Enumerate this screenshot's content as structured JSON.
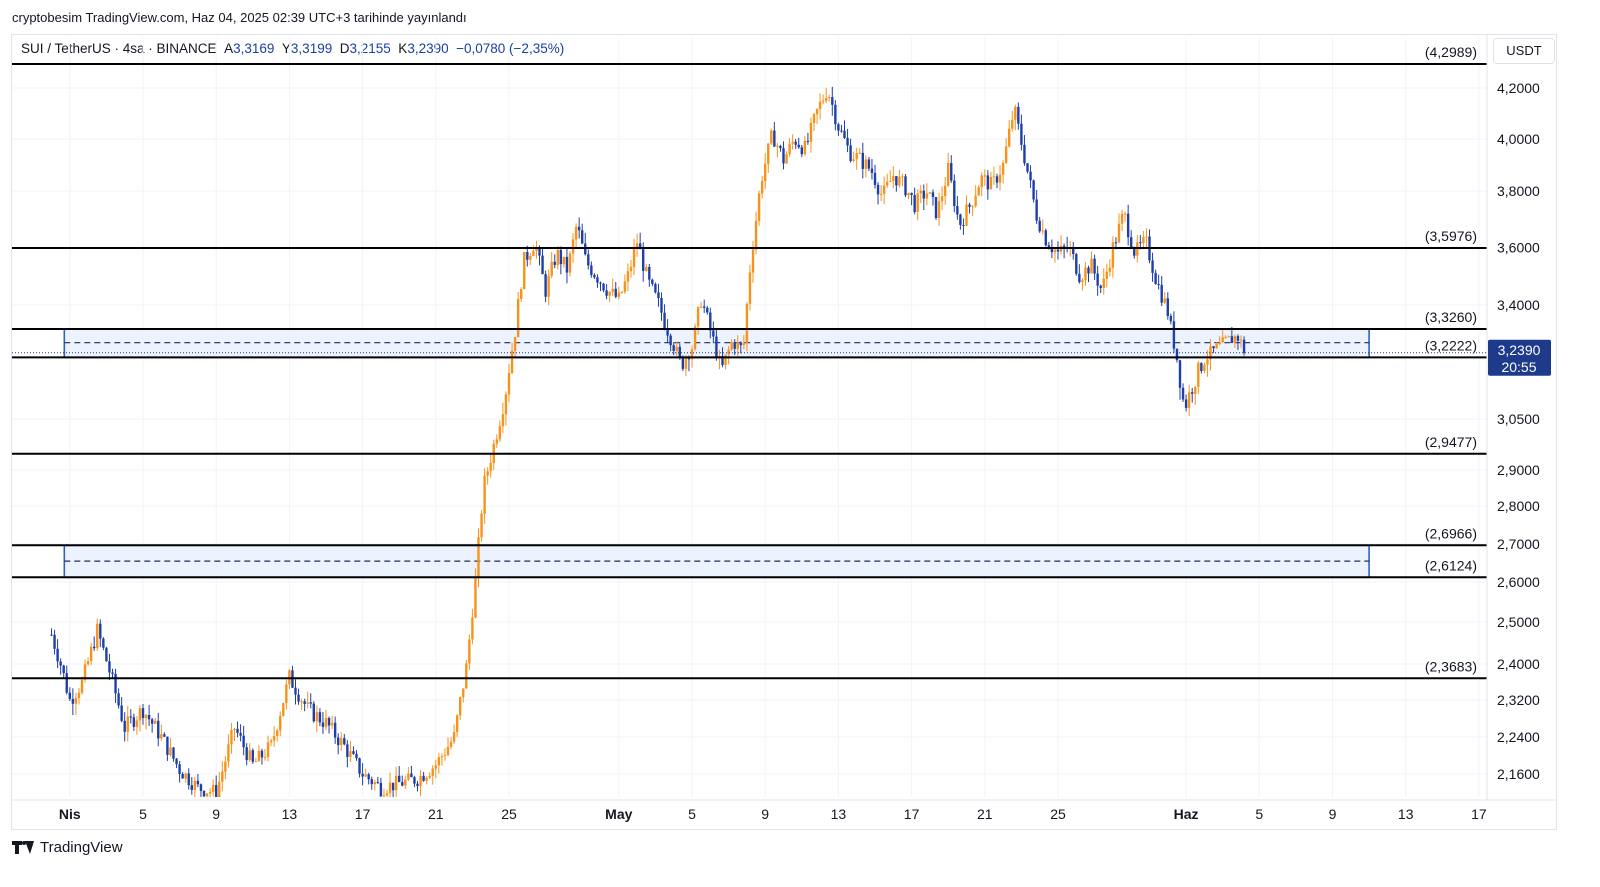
{
  "publisher_line": "cryptobesim TradingView.com, Haz 04, 2025 02:39 UTC+3 tarihinde yayınlandı",
  "legend": {
    "symbol": "SUI / TetherUS · 4sa · BINANCE",
    "open_label": "A",
    "open": "3,3169",
    "high_label": "Y",
    "high": "3,3199",
    "low_label": "D",
    "low": "3,2155",
    "close_label": "K",
    "close": "3,2390",
    "change": "−0,0780 (−2,35%)"
  },
  "currency": "USDT",
  "price_badge": {
    "price": "3,2390",
    "countdown": "20:55",
    "color": "#1e3a8a"
  },
  "brand": "TradingView",
  "colors": {
    "up": "#f7931a",
    "down": "#1e3fa8",
    "zone_fill": "#e9efff",
    "zone_border": "#2f5fc4",
    "line": "#000000"
  },
  "chart_data": {
    "type": "candlestick",
    "symbol": "SUI/USDT",
    "timeframe": "4h",
    "y_axis_ticks": [
      "2,1600",
      "2,2400",
      "2,3200",
      "2,4000",
      "2,5000",
      "2,6000",
      "2,7000",
      "2,8000",
      "2,9000",
      "3,0500",
      "3,4000",
      "3,6000",
      "3,8000",
      "4,0000",
      "4,2000"
    ],
    "y_ticks_values": [
      2.16,
      2.24,
      2.32,
      2.4,
      2.5,
      2.6,
      2.7,
      2.8,
      2.9,
      3.05,
      3.4,
      3.6,
      3.8,
      4.0,
      4.2
    ],
    "x_axis_ticks": [
      {
        "label": "Nis",
        "bold": true,
        "day": 1
      },
      {
        "label": "5",
        "day": 5
      },
      {
        "label": "9",
        "day": 9
      },
      {
        "label": "13",
        "day": 13
      },
      {
        "label": "17",
        "day": 17
      },
      {
        "label": "21",
        "day": 21
      },
      {
        "label": "25",
        "day": 25
      },
      {
        "label": "May",
        "bold": true,
        "day": 31
      },
      {
        "label": "5",
        "day": 35
      },
      {
        "label": "9",
        "day": 39
      },
      {
        "label": "13",
        "day": 43
      },
      {
        "label": "17",
        "day": 47
      },
      {
        "label": "21",
        "day": 51
      },
      {
        "label": "25",
        "day": 55
      },
      {
        "label": "Haz",
        "bold": true,
        "day": 62
      },
      {
        "label": "5",
        "day": 66
      },
      {
        "label": "9",
        "day": 70
      },
      {
        "label": "13",
        "day": 74
      },
      {
        "label": "17",
        "day": 78
      }
    ],
    "horizontal_levels": [
      {
        "value": 4.2989,
        "label": "(4,2989)"
      },
      {
        "value": 3.5976,
        "label": "(3,5976)"
      },
      {
        "value": 3.326,
        "label": "(3,3260)"
      },
      {
        "value": 3.2222,
        "label": "(3,2222)"
      },
      {
        "value": 2.9477,
        "label": "(2,9477)"
      },
      {
        "value": 2.6966,
        "label": "(2,6966)"
      },
      {
        "value": 2.6124,
        "label": "(2,6124)"
      },
      {
        "value": 2.3683,
        "label": "(2,3683)"
      }
    ],
    "zones": [
      {
        "top": 3.326,
        "bottom": 3.2222,
        "mid": 3.276,
        "start_day": 0.7,
        "end_day": 72
      },
      {
        "top": 2.6966,
        "bottom": 2.6124,
        "mid": 2.655,
        "start_day": 0.7,
        "end_day": 72
      }
    ],
    "last_price": 3.239,
    "price_path": [
      [
        0,
        2.47
      ],
      [
        0.5,
        2.4
      ],
      [
        1,
        2.32
      ],
      [
        1.7,
        2.36
      ],
      [
        2.5,
        2.48
      ],
      [
        3.2,
        2.38
      ],
      [
        4,
        2.26
      ],
      [
        5,
        2.3
      ],
      [
        6,
        2.24
      ],
      [
        7,
        2.17
      ],
      [
        8,
        2.13
      ],
      [
        9,
        2.12
      ],
      [
        10,
        2.26
      ],
      [
        11,
        2.18
      ],
      [
        12,
        2.22
      ],
      [
        13,
        2.37
      ],
      [
        14,
        2.3
      ],
      [
        15,
        2.27
      ],
      [
        16,
        2.22
      ],
      [
        17,
        2.16
      ],
      [
        18,
        2.13
      ],
      [
        19,
        2.14
      ],
      [
        20,
        2.15
      ],
      [
        21,
        2.18
      ],
      [
        22,
        2.24
      ],
      [
        22.7,
        2.4
      ],
      [
        23.2,
        2.62
      ],
      [
        23.6,
        2.85
      ],
      [
        24.2,
        2.98
      ],
      [
        24.8,
        3.12
      ],
      [
        25.3,
        3.3
      ],
      [
        25.8,
        3.55
      ],
      [
        26.4,
        3.62
      ],
      [
        27,
        3.45
      ],
      [
        27.6,
        3.58
      ],
      [
        28.2,
        3.52
      ],
      [
        28.7,
        3.68
      ],
      [
        29.2,
        3.55
      ],
      [
        29.8,
        3.5
      ],
      [
        30.4,
        3.45
      ],
      [
        31,
        3.42
      ],
      [
        31.5,
        3.5
      ],
      [
        32,
        3.62
      ],
      [
        32.6,
        3.48
      ],
      [
        33.2,
        3.4
      ],
      [
        33.8,
        3.3
      ],
      [
        34.4,
        3.2
      ],
      [
        35,
        3.26
      ],
      [
        35.5,
        3.42
      ],
      [
        36.1,
        3.3
      ],
      [
        36.6,
        3.18
      ],
      [
        37.2,
        3.28
      ],
      [
        37.8,
        3.25
      ],
      [
        38.2,
        3.55
      ],
      [
        38.8,
        3.85
      ],
      [
        39.4,
        4.02
      ],
      [
        40,
        3.92
      ],
      [
        40.6,
        4.0
      ],
      [
        41.2,
        3.96
      ],
      [
        41.8,
        4.1
      ],
      [
        42.4,
        4.2
      ],
      [
        43,
        4.05
      ],
      [
        43.6,
        3.95
      ],
      [
        44.2,
        3.92
      ],
      [
        44.8,
        3.88
      ],
      [
        45.4,
        3.78
      ],
      [
        46,
        3.86
      ],
      [
        46.6,
        3.82
      ],
      [
        47.2,
        3.75
      ],
      [
        47.8,
        3.8
      ],
      [
        48.4,
        3.72
      ],
      [
        49,
        3.88
      ],
      [
        49.6,
        3.68
      ],
      [
        50.2,
        3.75
      ],
      [
        50.8,
        3.85
      ],
      [
        51.4,
        3.82
      ],
      [
        52,
        3.9
      ],
      [
        52.6,
        4.12
      ],
      [
        53.2,
        3.92
      ],
      [
        53.8,
        3.72
      ],
      [
        54.4,
        3.62
      ],
      [
        55,
        3.58
      ],
      [
        55.6,
        3.6
      ],
      [
        56.2,
        3.5
      ],
      [
        56.8,
        3.54
      ],
      [
        57.4,
        3.45
      ],
      [
        58,
        3.6
      ],
      [
        58.6,
        3.72
      ],
      [
        59.2,
        3.58
      ],
      [
        59.8,
        3.62
      ],
      [
        60.4,
        3.48
      ],
      [
        61,
        3.38
      ],
      [
        61.5,
        3.22
      ],
      [
        61.9,
        3.08
      ],
      [
        62.4,
        3.15
      ],
      [
        63,
        3.22
      ],
      [
        63.6,
        3.25
      ],
      [
        64.2,
        3.28
      ],
      [
        64.8,
        3.3
      ],
      [
        65.3,
        3.239
      ]
    ]
  }
}
